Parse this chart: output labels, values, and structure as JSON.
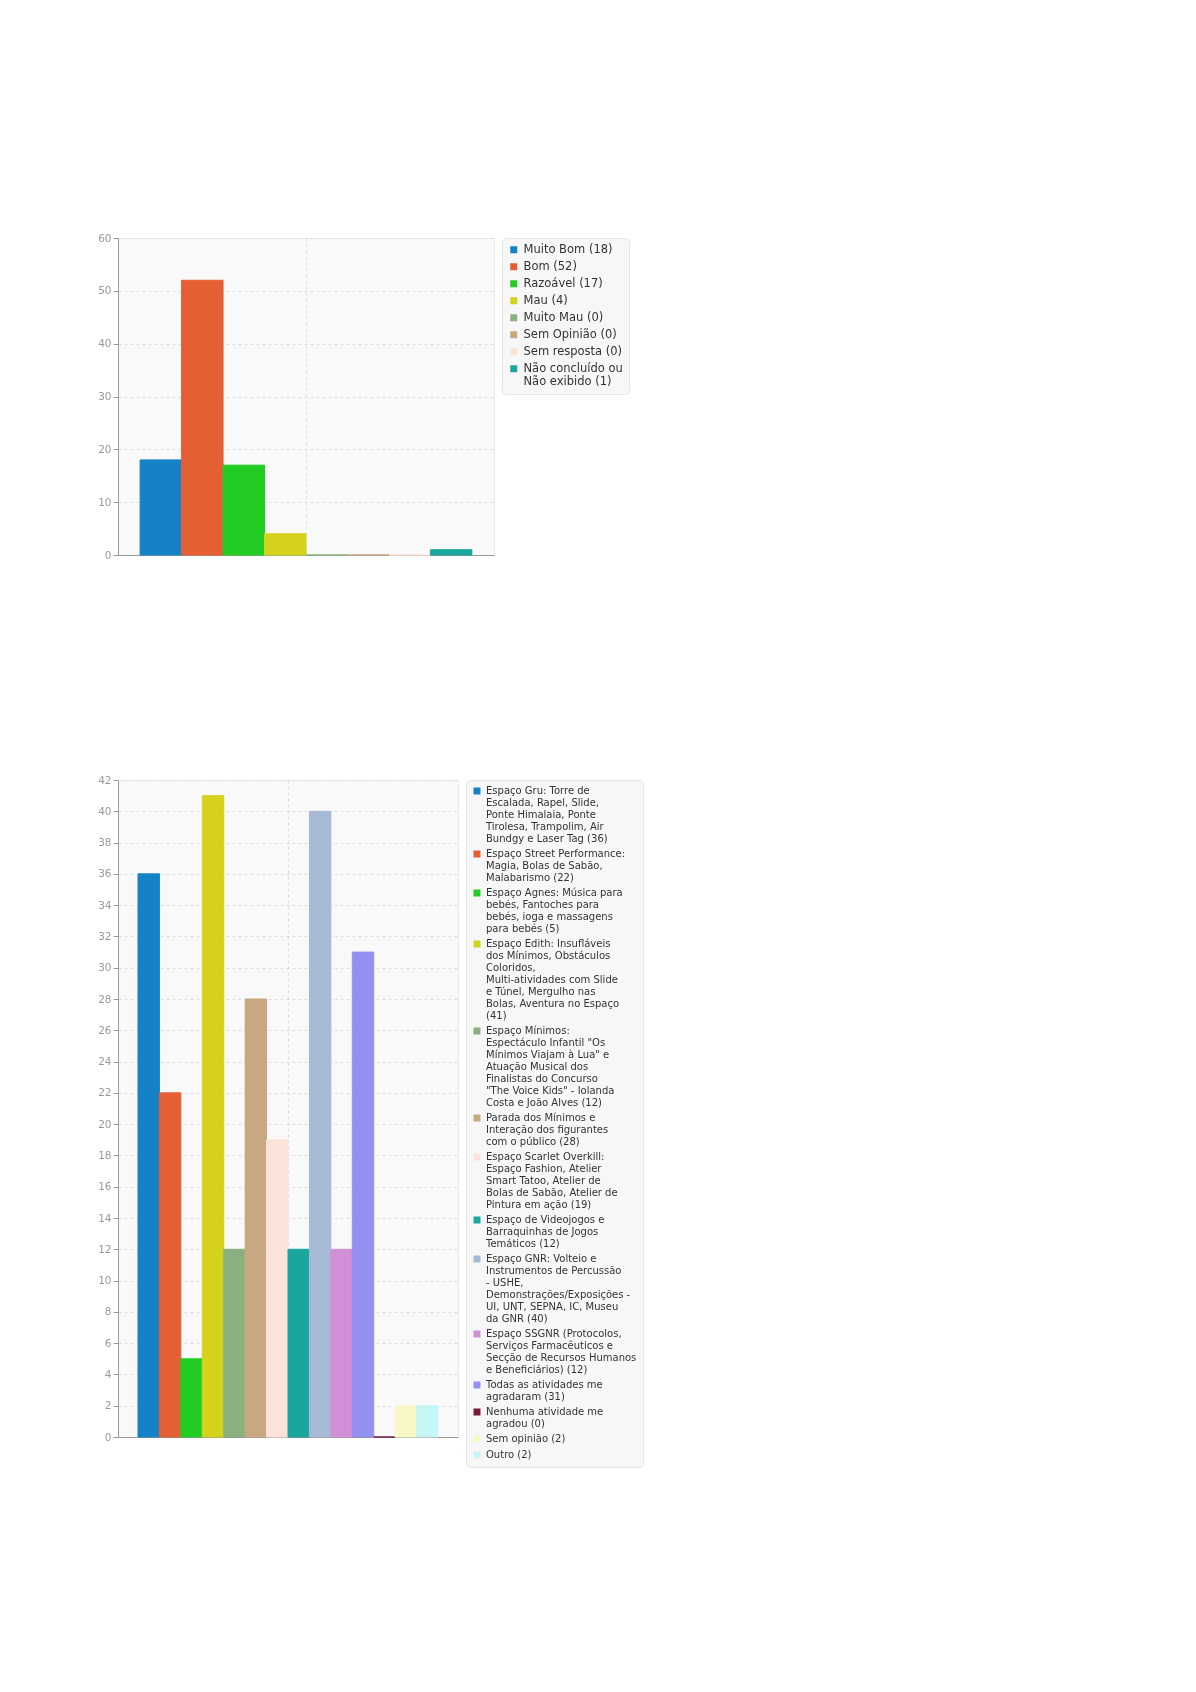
{
  "chart_data": [
    {
      "type": "bar",
      "categories": [
        null
      ],
      "ylim": [
        0,
        60
      ],
      "yticks": [
        0,
        10,
        20,
        30,
        40,
        50,
        60
      ],
      "grid": true,
      "legend": "right",
      "tick_labels": "y",
      "series": [
        {
          "name": "Muito Bom (18)",
          "color": "#1582c8",
          "values": [
            18
          ]
        },
        {
          "name": "Bom (52)",
          "color": "#e55f34",
          "values": [
            52
          ]
        },
        {
          "name": "Razoável (17)",
          "color": "#22cc22",
          "values": [
            17
          ]
        },
        {
          "name": "Mau (4)",
          "color": "#d4d21c",
          "values": [
            4
          ]
        },
        {
          "name": "Muito Mau (0)",
          "color": "#8ab07f",
          "values": [
            0
          ]
        },
        {
          "name": "Sem Opinião (0)",
          "color": "#c8a880",
          "values": [
            0
          ]
        },
        {
          "name": "Sem resposta (0)",
          "color": "#fbe3da",
          "values": [
            0
          ]
        },
        {
          "name": "Não concluído ou Não exibido (1)",
          "color": "#1aa69e",
          "values": [
            1
          ]
        }
      ]
    },
    {
      "type": "bar",
      "categories": [
        null
      ],
      "ylim": [
        0,
        42
      ],
      "yticks": [
        0,
        2,
        4,
        6,
        8,
        10,
        12,
        14,
        16,
        18,
        20,
        22,
        24,
        26,
        28,
        30,
        32,
        34,
        36,
        38,
        40,
        42
      ],
      "grid": true,
      "legend": "right",
      "tick_labels": "y",
      "series": [
        {
          "name": "Espaço Gru: Torre de Escalada, Rapel, Slide, Ponte Himalaia, Ponte Tirolesa, Trampolim, Air Bundgy e Laser Tag (36)",
          "color": "#1582c8",
          "values": [
            36
          ]
        },
        {
          "name": "Espaço Street Performance: Magia, Bolas de Sabão, Malabarismo (22)",
          "color": "#e55f34",
          "values": [
            22
          ]
        },
        {
          "name": "Espaço Agnes: Música para bebés, Fantoches para bebés, ioga e massagens para bebés (5)",
          "color": "#22cc22",
          "values": [
            5
          ]
        },
        {
          "name": "Espaço Edith: Insufláveis dos Mínimos, Obstáculos Coloridos, Multi-atividades com Slide e Túnel, Mergulho nas Bolas, Aventura no Espaço (41)",
          "color": "#d4d21c",
          "values": [
            41
          ]
        },
        {
          "name": "Espaço Mínimos: Espectáculo Infantil \"Os Mínimos Viajam à Lua\" e Atuação Musical dos Finalistas do Concurso \"The Voice Kids\" - Iolanda Costa e João Alves (12)",
          "color": "#8ab07f",
          "values": [
            12
          ]
        },
        {
          "name": "Parada dos Mínimos e Interação dos figurantes com o público (28)",
          "color": "#c8a880",
          "values": [
            28
          ]
        },
        {
          "name": "Espaço Scarlet Overkill: Espaço Fashion, Atelier Smart Tatoo, Atelier de Bolas de Sabão, Atelier de Pintura em ação (19)",
          "color": "#fbe3da",
          "values": [
            19
          ]
        },
        {
          "name": "Espaço de Videojogos e Barraquinhas de Jogos Temáticos (12)",
          "color": "#1aa69e",
          "values": [
            12
          ]
        },
        {
          "name": "Espaço GNR: Volteio e Instrumentos de Percussão - USHE, Demonstrações/Exposições - UI, UNT, SEPNA, IC, Museu da GNR (40)",
          "color": "#a6bad6",
          "values": [
            40
          ]
        },
        {
          "name": "Espaço SSGNR (Protocolos, Serviços Farmacêuticos e Secção de Recursos Humanos e Beneficiários) (12)",
          "color": "#d190d6",
          "values": [
            12
          ]
        },
        {
          "name": "Todas as atividades me agradaram (31)",
          "color": "#9490f2",
          "values": [
            31
          ]
        },
        {
          "name": "Nenhuma atividade me agradou (0)",
          "color": "#7a1a3a",
          "values": [
            0
          ]
        },
        {
          "name": "Sem opinião (2)",
          "color": "#f8f7c6",
          "values": [
            2
          ]
        },
        {
          "name": "Outro (2)",
          "color": "#c6f6f6",
          "values": [
            2
          ]
        }
      ]
    }
  ]
}
